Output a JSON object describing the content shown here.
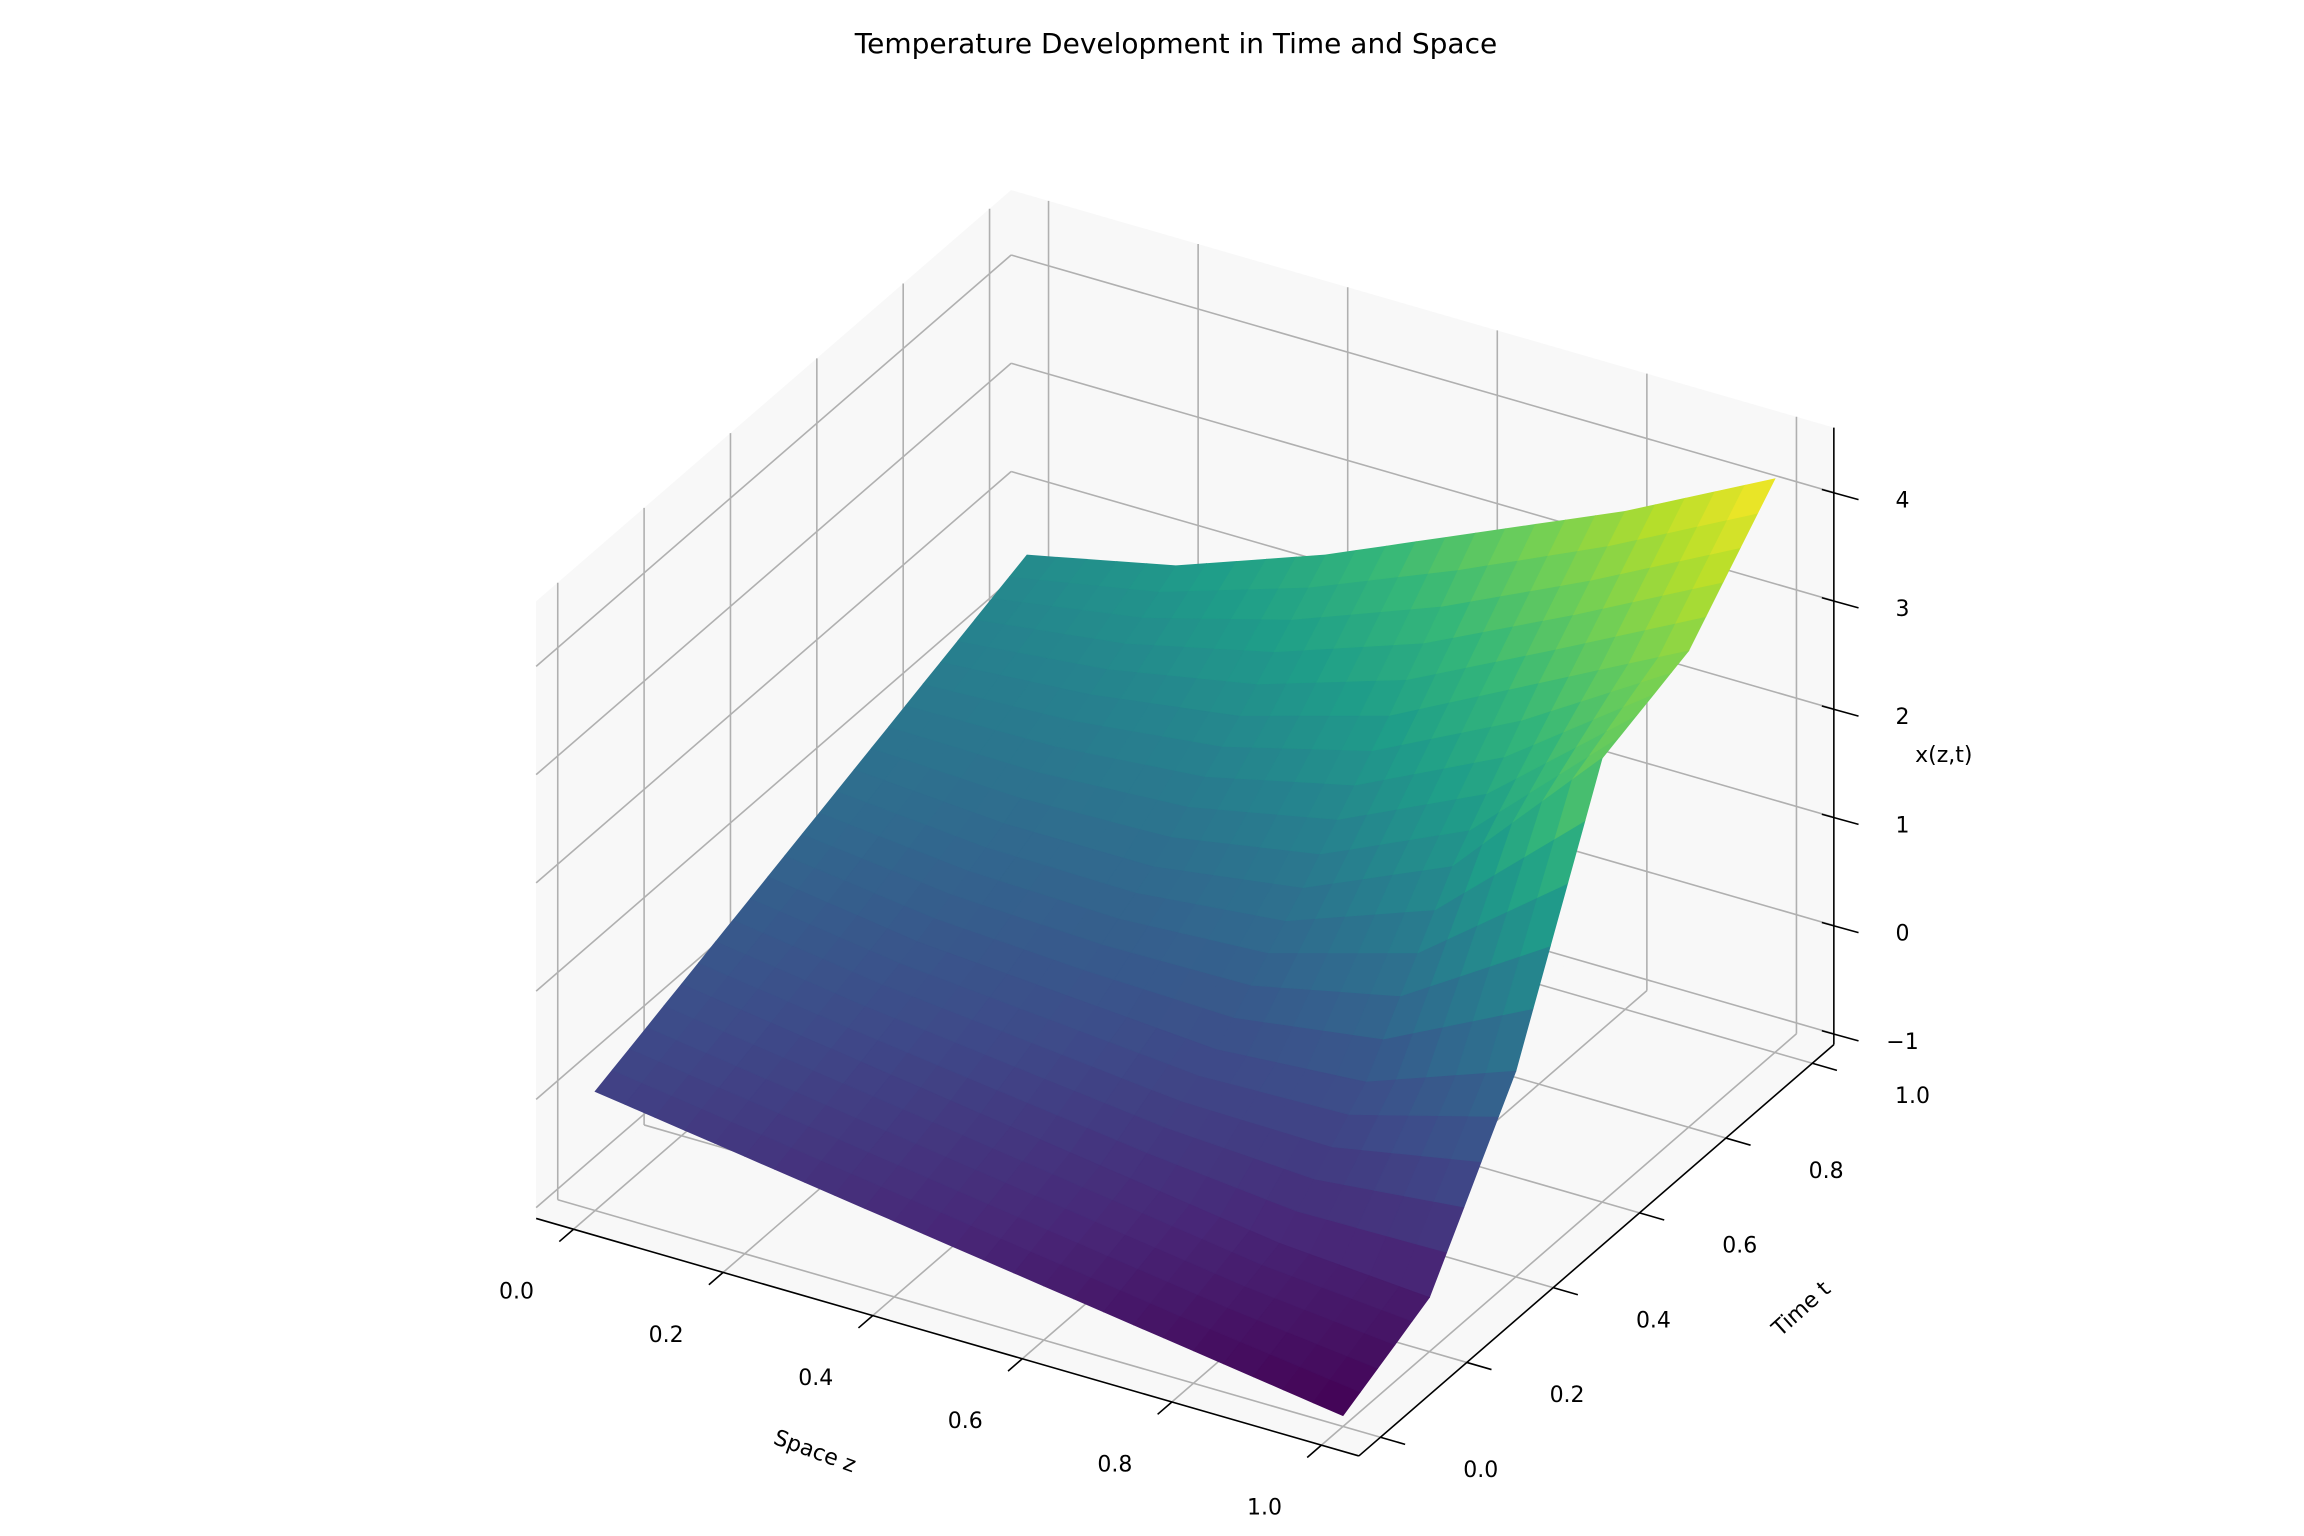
{
  "chart_data": {
    "type": "surface",
    "title": "Temperature Development in Time and Space",
    "xlabel": "Space z",
    "ylabel": "Time t",
    "zlabel": "x(z,t)",
    "colormap": "viridis",
    "x": [
      0,
      0.2,
      0.4,
      0.6,
      0.8,
      1.0
    ],
    "y": [
      0,
      0.2,
      0.4,
      0.6,
      0.8,
      1.0
    ],
    "z": [
      [
        0.0,
        -0.2,
        -0.4,
        -0.6,
        -0.8,
        -1.0
      ],
      [
        0.3,
        0.1,
        -0.1,
        -0.3,
        -0.5,
        -0.6
      ],
      [
        0.6,
        0.4,
        0.3,
        0.2,
        0.3,
        0.8
      ],
      [
        0.9,
        0.8,
        0.8,
        1.0,
        1.6,
        3.0
      ],
      [
        1.2,
        1.3,
        1.5,
        1.9,
        2.6,
        3.3
      ],
      [
        1.5,
        1.8,
        2.3,
        2.9,
        3.5,
        4.2
      ]
    ],
    "xlim": [
      -0.05,
      1.05
    ],
    "ylim": [
      -0.05,
      1.05
    ],
    "zlim": [
      -1.1,
      4.6
    ],
    "xticks": [
      {
        "value": 0,
        "label": "0.0"
      },
      {
        "value": 0.2,
        "label": "0.2"
      },
      {
        "value": 0.4,
        "label": "0.4"
      },
      {
        "value": 0.6,
        "label": "0.6"
      },
      {
        "value": 0.8,
        "label": "0.8"
      },
      {
        "value": 1.0,
        "label": "1.0"
      }
    ],
    "yticks": [
      {
        "value": 0,
        "label": "0.0"
      },
      {
        "value": 0.2,
        "label": "0.2"
      },
      {
        "value": 0.4,
        "label": "0.4"
      },
      {
        "value": 0.6,
        "label": "0.6"
      },
      {
        "value": 0.8,
        "label": "0.8"
      },
      {
        "value": 1.0,
        "label": "1.0"
      }
    ],
    "zticks": [
      {
        "value": -1,
        "label": "−1"
      },
      0,
      1,
      2,
      3,
      4
    ],
    "grid": true
  }
}
